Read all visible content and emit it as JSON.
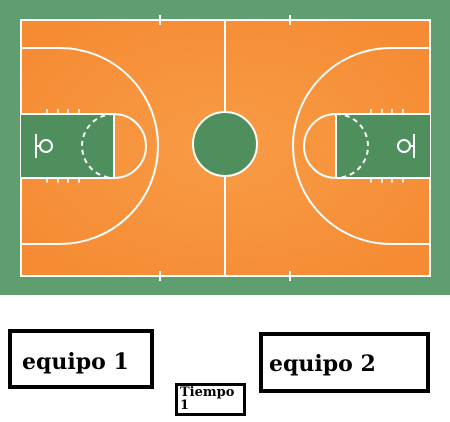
{
  "colors": {
    "border_green": "#5f9e6e",
    "court_orange": "#f7923a",
    "key_green": "#4f8f5e",
    "center_circle_green": "#4f8f5e",
    "line_white": "#ffffff"
  },
  "court": {
    "sport": "basketball",
    "elements": [
      "center-circle",
      "half-court-line",
      "left-key",
      "right-key",
      "left-three-point-arc",
      "right-three-point-arc",
      "left-hoop",
      "right-hoop"
    ]
  },
  "scoreboard": {
    "team1_label": "equipo 1",
    "team2_label": "equipo 2",
    "timer_label": "Tiempo 1"
  }
}
